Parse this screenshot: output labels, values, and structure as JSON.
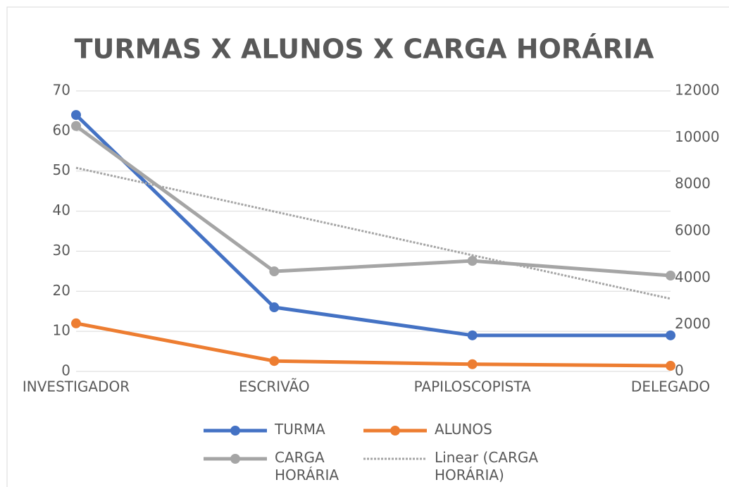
{
  "chart_data": {
    "type": "line",
    "title": "TURMAS X ALUNOS X CARGA HORÁRIA",
    "categories": [
      "INVESTIGADOR",
      "ESCRIVÃO",
      "PAPILOSCOPISTA",
      "DELEGADO"
    ],
    "series": [
      {
        "name": "TURMA",
        "color": "#4472c4",
        "values": [
          64,
          16,
          9,
          9
        ]
      },
      {
        "name": "ALUNOS",
        "color": "#ed7d31",
        "values": [
          12,
          2.6,
          1.8,
          1.4
        ]
      },
      {
        "name": "CARGA HORÁRIA",
        "color": "#a5a5a5",
        "axis": "y2",
        "values": [
          10500,
          4280,
          4730,
          4100
        ]
      },
      {
        "name": "Linear (CARGA HORÁRIA)",
        "color": "#a5a5a5",
        "axis": "y2",
        "style": "dotted",
        "values": [
          8710,
          6840,
          4970,
          3110
        ]
      }
    ],
    "ylim": [
      0,
      70
    ],
    "yticks": [
      0,
      10,
      20,
      30,
      40,
      50,
      60,
      70
    ],
    "y2lim": [
      0,
      12000
    ],
    "y2ticks": [
      0,
      2000,
      4000,
      6000,
      8000,
      10000,
      12000
    ],
    "grid": true,
    "legend": "bottom"
  }
}
